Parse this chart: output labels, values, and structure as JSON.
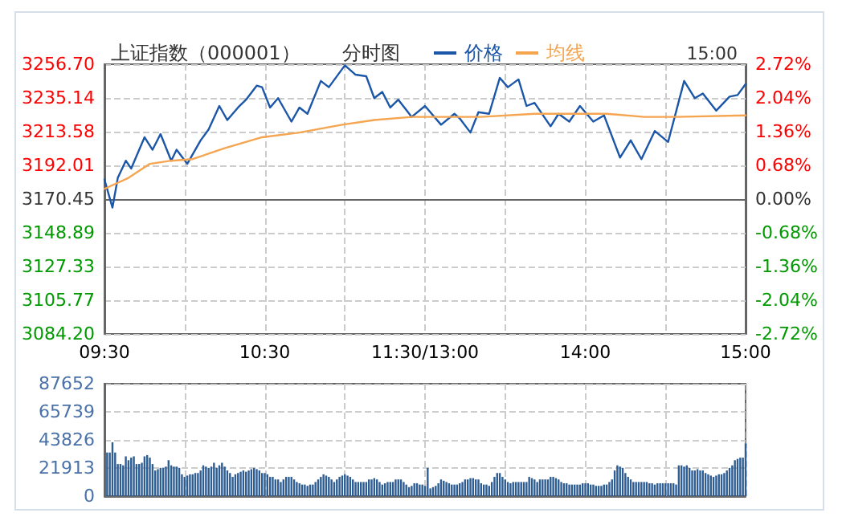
{
  "chart_data": [
    {
      "type": "line",
      "title": "上证指数（000001）",
      "subtitle": "分时图",
      "annotations": [
        "15:00"
      ],
      "categories": [
        "09:30",
        null,
        null,
        null,
        null,
        null,
        null,
        null,
        null,
        null,
        null,
        null,
        null,
        null,
        null,
        null,
        null,
        null,
        null,
        null,
        null,
        null,
        null,
        null,
        null,
        null,
        null,
        null,
        null,
        null,
        null,
        null,
        null,
        null,
        null,
        null,
        null,
        null,
        null,
        null,
        null,
        null,
        null,
        null,
        null,
        null,
        null,
        null,
        null,
        null,
        null,
        null,
        null,
        null,
        null,
        null,
        null,
        null,
        null,
        null,
        "10:30",
        null,
        null,
        null,
        null,
        null,
        null,
        null,
        null,
        null,
        null,
        null,
        null,
        null,
        null,
        null,
        null,
        null,
        null,
        null,
        null,
        null,
        null,
        null,
        null,
        null,
        null,
        null,
        null,
        null,
        null,
        null,
        null,
        null,
        null,
        null,
        null,
        null,
        null,
        null,
        null,
        null,
        null,
        null,
        null,
        null,
        null,
        null,
        null,
        null,
        null,
        null,
        null,
        null,
        null,
        null,
        null,
        null,
        null,
        null,
        "11:30/13:00",
        null,
        null,
        null,
        null,
        null,
        null,
        null,
        null,
        null,
        null,
        null,
        null,
        null,
        null,
        null,
        null,
        null,
        null,
        null,
        null,
        null,
        null,
        null,
        null,
        null,
        null,
        null,
        null,
        null,
        null,
        null,
        null,
        null,
        null,
        null,
        null,
        null,
        null,
        null,
        null,
        null,
        null,
        null,
        null,
        null,
        null,
        null,
        null,
        null,
        null,
        null,
        null,
        null,
        null,
        null,
        null,
        null,
        null,
        null,
        "14:00",
        null,
        null,
        null,
        null,
        null,
        null,
        null,
        null,
        null,
        null,
        null,
        null,
        null,
        null,
        null,
        null,
        null,
        null,
        null,
        null,
        null,
        null,
        null,
        null,
        null,
        null,
        null,
        null,
        null,
        null,
        null,
        null,
        null,
        null,
        null,
        null,
        null,
        null,
        null,
        null,
        null,
        null,
        null,
        null,
        null,
        null,
        null,
        null,
        null,
        null,
        null,
        null,
        null,
        null,
        null,
        null,
        null,
        null,
        null,
        "15:00"
      ],
      "ylim": [
        3084.2,
        3256.7
      ],
      "yticks": [
        {
          "value": 3084.2,
          "label": "3084.20"
        },
        3105.77,
        3127.33,
        3148.89,
        3170.45,
        3192.01,
        3213.58,
        3235.14,
        {
          "value": 3256.7,
          "label": "3256.70"
        }
      ],
      "y2lim": [
        -2.72,
        2.72
      ],
      "y2ticks": [
        {
          "value": -2.72,
          "label": "-2.72%"
        },
        {
          "value": -2.04,
          "label": "-2.04%"
        },
        {
          "value": -1.36,
          "label": "-1.36%"
        },
        {
          "value": -0.68,
          "label": "-0.68%"
        },
        {
          "value": 0,
          "label": "0.00%"
        },
        {
          "value": 0.68,
          "label": "0.68%"
        },
        {
          "value": 1.36,
          "label": "1.36%"
        },
        {
          "value": 2.04,
          "label": "2.04%"
        },
        {
          "value": 2.72,
          "label": "2.72%"
        }
      ],
      "grid": true,
      "legend": "top",
      "marker": "none",
      "line_style": "solid",
      "series": [
        {
          "name": "价格",
          "color": "#1c56a8",
          "values": [
            3183,
            null,
            null,
            3165,
            null,
            3184,
            null,
            null,
            3195,
            null,
            3190,
            null,
            null,
            null,
            null,
            3210,
            null,
            null,
            3202,
            null,
            null,
            3212,
            null,
            null,
            null,
            3195,
            null,
            3202,
            null,
            null,
            null,
            3193,
            null,
            null,
            null,
            null,
            3208,
            null,
            null,
            3215,
            null,
            null,
            null,
            3230,
            null,
            null,
            3221,
            null,
            null,
            null,
            3229,
            null,
            null,
            3234,
            null,
            null,
            null,
            3243,
            null,
            3242,
            null,
            null,
            3229,
            null,
            null,
            3235,
            null,
            null,
            null,
            null,
            3220,
            null,
            null,
            3229,
            null,
            null,
            3225,
            null,
            null,
            null,
            null,
            3246,
            null,
            null,
            3242,
            null,
            null,
            null,
            null,
            null,
            3256,
            null,
            null,
            null,
            3250,
            null,
            null,
            null,
            3249,
            null,
            null,
            3235,
            null,
            null,
            3239,
            null,
            null,
            3229,
            null,
            null,
            3234,
            null,
            null,
            null,
            null,
            3223,
            null,
            null,
            null,
            null,
            3230,
            null,
            null,
            null,
            null,
            null,
            3218,
            null,
            null,
            null,
            null,
            3225,
            null,
            3222,
            null,
            null,
            null,
            3213,
            null,
            null,
            3226,
            null,
            null,
            null,
            3225,
            null,
            null,
            null,
            3248,
            null,
            null,
            3242,
            null,
            null,
            null,
            3247,
            null,
            null,
            3230,
            null,
            null,
            3232,
            null,
            null,
            null,
            null,
            null,
            3217,
            null,
            null,
            3225,
            null,
            null,
            null,
            3220,
            null,
            null,
            null,
            3230,
            null,
            null,
            null,
            null,
            3220,
            null,
            null,
            null,
            3224,
            null,
            null,
            null,
            null,
            null,
            3197,
            null,
            null,
            null,
            3208,
            null,
            null,
            null,
            3196,
            null,
            null,
            null,
            null,
            3214,
            null,
            null,
            null,
            null,
            3207,
            null,
            null,
            null,
            null,
            null,
            3246,
            null,
            null,
            null,
            3235,
            null,
            null,
            3238,
            null,
            null,
            null,
            null,
            3227,
            null,
            null,
            null,
            null,
            3236,
            null,
            null,
            3237,
            null,
            null,
            3244
          ]
        },
        {
          "name": "均线",
          "color": "#f5a54f",
          "values": [
            3177,
            null,
            null,
            null,
            null,
            null,
            null,
            null,
            null,
            3184,
            null,
            null,
            null,
            null,
            null,
            null,
            null,
            3193,
            null,
            null,
            null,
            null,
            null,
            null,
            null,
            3195,
            null,
            null,
            null,
            null,
            null,
            null,
            null,
            3196,
            null,
            null,
            null,
            null,
            null,
            null,
            null,
            null,
            null,
            null,
            null,
            3203,
            null,
            null,
            null,
            null,
            null,
            null,
            null,
            null,
            null,
            null,
            null,
            null,
            null,
            3210,
            null,
            null,
            null,
            null,
            null,
            null,
            null,
            null,
            null,
            null,
            null,
            null,
            null,
            3213,
            null,
            null,
            null,
            null,
            null,
            null,
            null,
            null,
            null,
            null,
            null,
            null,
            null,
            null,
            null,
            3218,
            null,
            null,
            null,
            null,
            null,
            null,
            null,
            null,
            null,
            null,
            null,
            3221,
            null,
            null,
            null,
            null,
            null,
            null,
            null,
            null,
            null,
            null,
            null,
            null,
            null,
            3223,
            null,
            null,
            null,
            null,
            null,
            null,
            null,
            null,
            null,
            null,
            null,
            null,
            null,
            null,
            null,
            null,
            null,
            null,
            null,
            null,
            null,
            null,
            null,
            null,
            null,
            3223,
            null,
            null,
            null,
            null,
            null,
            null,
            null,
            null,
            null,
            null,
            null,
            null,
            null,
            null,
            null,
            null,
            null,
            null,
            null,
            3225,
            null,
            null,
            null,
            null,
            null,
            null,
            null,
            null,
            null,
            null,
            null,
            null,
            null,
            null,
            null,
            null,
            null,
            null,
            null,
            null,
            null,
            null,
            null,
            null,
            null,
            null,
            3225,
            null,
            null,
            null,
            null,
            null,
            null,
            null,
            null,
            null,
            null,
            null,
            null,
            null,
            3223,
            null,
            null,
            null,
            null,
            null,
            null,
            null,
            null,
            null,
            null,
            null,
            3223,
            null,
            null,
            null,
            null,
            null,
            null,
            null,
            null,
            null,
            null,
            null,
            null,
            null,
            null,
            null,
            null,
            null,
            null,
            null,
            null,
            null,
            null,
            null,
            null,
            null,
            3224
          ]
        }
      ]
    },
    {
      "type": "bar",
      "tick_labels": "y",
      "grid": true,
      "categories": [
        null,
        null,
        null,
        null,
        null,
        null,
        null,
        null,
        null,
        null,
        null,
        null,
        null,
        null,
        null,
        null,
        null,
        null,
        null,
        null,
        null,
        null,
        null,
        null,
        null,
        null,
        null,
        null,
        null,
        null,
        null,
        null,
        null,
        null,
        null,
        null,
        null,
        null,
        null,
        null,
        null,
        null,
        null,
        null,
        null,
        null,
        null,
        null,
        null,
        null,
        null,
        null,
        null,
        null,
        null,
        null,
        null,
        null,
        null,
        null,
        null,
        null,
        null,
        null,
        null,
        null,
        null,
        null,
        null,
        null,
        null,
        null,
        null,
        null,
        null,
        null,
        null,
        null,
        null,
        null,
        null,
        null,
        null,
        null,
        null,
        null,
        null,
        null,
        null,
        null,
        null,
        null,
        null,
        null,
        null,
        null,
        null,
        null,
        null,
        null,
        null,
        null,
        null,
        null,
        null,
        null,
        null,
        null,
        null,
        null,
        null,
        null,
        null,
        null,
        null,
        null,
        null,
        null,
        null,
        null,
        null,
        null,
        null,
        null,
        null,
        null,
        null,
        null,
        null,
        null,
        null,
        null,
        null,
        null,
        null,
        null,
        null,
        null,
        null,
        null,
        null,
        null,
        null,
        null,
        null,
        null,
        null,
        null,
        null,
        null,
        null,
        null,
        null,
        null,
        null,
        null,
        null,
        null,
        null,
        null,
        null,
        null,
        null,
        null,
        null,
        null,
        null,
        null,
        null,
        null,
        null,
        null,
        null,
        null,
        null,
        null,
        null,
        null,
        null,
        null,
        null,
        null,
        null,
        null,
        null,
        null,
        null,
        null,
        null,
        null,
        null,
        null,
        null,
        null,
        null,
        null,
        null,
        null,
        null,
        null,
        null,
        null,
        null,
        null,
        null,
        null,
        null,
        null,
        null,
        null,
        null,
        null,
        null,
        null,
        null,
        null,
        null,
        null,
        null,
        null,
        null,
        null,
        null,
        null,
        null,
        null,
        null,
        null,
        null,
        null,
        null,
        null,
        null,
        null,
        null,
        null,
        null,
        null,
        null,
        null,
        null
      ],
      "ylim": [
        0,
        87652
      ],
      "yticks": [
        0,
        21913,
        43826,
        65739,
        87652
      ],
      "color": "#2d5d92",
      "values": [
        null,
        34000,
        34000,
        42000,
        34000,
        25000,
        25000,
        24000,
        31000,
        28000,
        30000,
        31000,
        25000,
        25000,
        26000,
        31000,
        32000,
        30000,
        25000,
        20000,
        21000,
        22000,
        22000,
        23000,
        28000,
        24000,
        23000,
        23000,
        22000,
        17000,
        15000,
        16000,
        17000,
        17000,
        18000,
        18000,
        20000,
        24000,
        23000,
        22000,
        23000,
        26000,
        22000,
        24000,
        26000,
        23000,
        20000,
        18000,
        15000,
        17000,
        18000,
        19000,
        20000,
        19000,
        20000,
        21000,
        22000,
        21000,
        20000,
        18000,
        18000,
        17000,
        15000,
        15000,
        13000,
        13000,
        11000,
        13000,
        15000,
        15000,
        15000,
        13000,
        11000,
        10000,
        9000,
        9000,
        8000,
        9000,
        9000,
        11000,
        13000,
        15000,
        17000,
        16000,
        15000,
        13000,
        11000,
        13000,
        15000,
        16000,
        17000,
        16000,
        15000,
        13000,
        11000,
        11000,
        11000,
        11000,
        11000,
        13000,
        13000,
        14000,
        13000,
        11000,
        9000,
        10000,
        11000,
        11000,
        11000,
        13000,
        13000,
        13000,
        11000,
        9000,
        7000,
        8000,
        10000,
        10000,
        9000,
        9000,
        8000,
        22000,
        6000,
        7000,
        8000,
        10000,
        13000,
        12000,
        11000,
        10000,
        9000,
        9000,
        9000,
        10000,
        11000,
        13000,
        13000,
        14000,
        14000,
        13000,
        13000,
        10000,
        9000,
        9000,
        8000,
        11000,
        15000,
        18000,
        18000,
        15000,
        13000,
        11000,
        10000,
        11000,
        11000,
        11000,
        11000,
        11000,
        11000,
        15000,
        14000,
        13000,
        11000,
        13000,
        13000,
        13000,
        13000,
        15000,
        15000,
        14000,
        13000,
        11000,
        10000,
        10000,
        9000,
        9000,
        9000,
        9000,
        9000,
        10000,
        10000,
        10000,
        9000,
        9000,
        8000,
        8000,
        8000,
        9000,
        9000,
        11000,
        13000,
        20000,
        24000,
        23000,
        22000,
        18000,
        15000,
        13000,
        11000,
        11000,
        11000,
        11000,
        11000,
        11000,
        10000,
        10000,
        9000,
        10000,
        10000,
        10000,
        10000,
        10000,
        10000,
        10000,
        9000,
        24000,
        24000,
        23000,
        24000,
        22000,
        20000,
        20000,
        21000,
        20000,
        20000,
        18000,
        17000,
        16000,
        15000,
        16000,
        17000,
        17000,
        18000,
        20000,
        22000,
        24000,
        28000,
        29000,
        30000,
        30000,
        41000
      ]
    }
  ]
}
